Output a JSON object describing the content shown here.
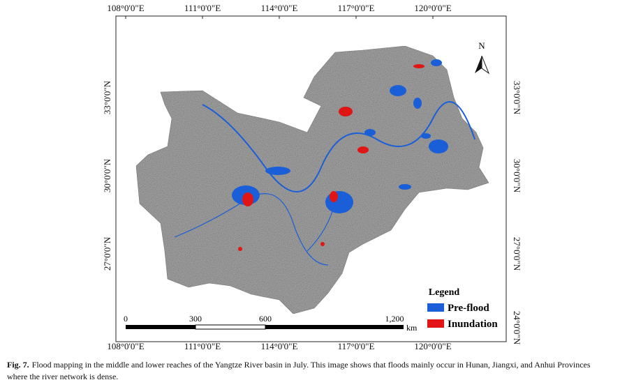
{
  "map": {
    "lon_labels": [
      "108°0'0\"E",
      "111°0'0\"E",
      "114°0'0\"E",
      "117°0'0\"E",
      "120°0'0\"E"
    ],
    "lat_labels": [
      "33°0'0\"N",
      "30°0'0\"N",
      "27°0'0\"N",
      "24°0'0\"N"
    ],
    "north": "N",
    "scale": {
      "labels": [
        "0",
        "300",
        "600",
        "1,200"
      ],
      "unit": "km"
    },
    "legend": {
      "title": "Legend",
      "items": [
        {
          "label": "Pre-flood",
          "color": "#1a5fd8"
        },
        {
          "label": "Inundation",
          "color": "#e01515"
        }
      ]
    }
  },
  "caption": {
    "label": "Fig. 7.",
    "text": "Flood mapping in the middle and lower reaches of the Yangtze River basin in July. This image shows that floods mainly occur in Hunan, Jiangxi, and Anhui Provinces where the river network is dense."
  }
}
